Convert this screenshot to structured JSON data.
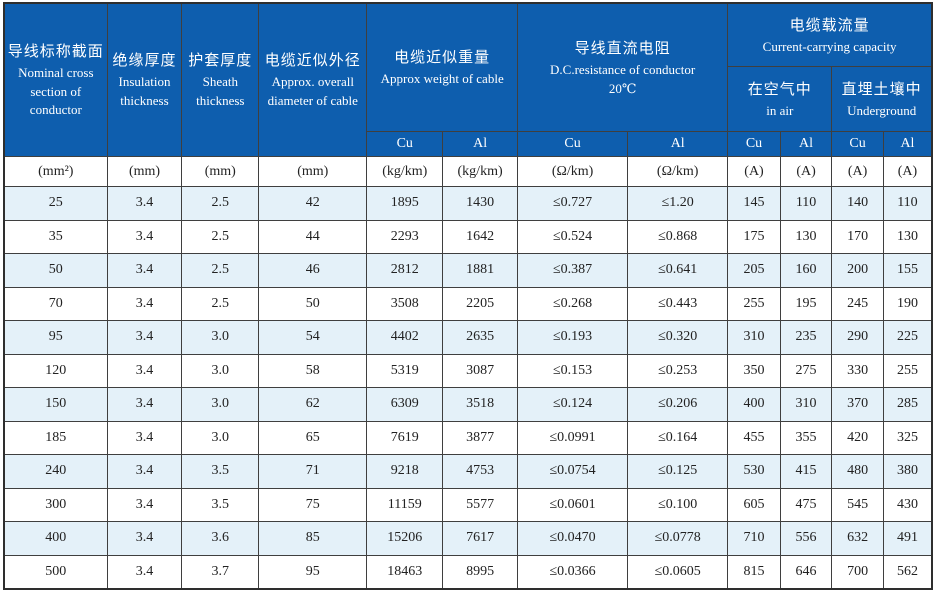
{
  "table_title": "cable-specification-table",
  "header": {
    "nominal": {
      "zh": "导线标称截面",
      "en": "Nominal  cross section of conductor"
    },
    "insulation": {
      "zh": "绝缘厚度",
      "en": "Insulation thickness"
    },
    "sheath": {
      "zh": "护套厚度",
      "en": "Sheath thickness"
    },
    "diameter": {
      "zh": "电缆近似外径",
      "en": "Approx. overall diameter of cable"
    },
    "weight": {
      "zh": "电缆近似重量",
      "en": "Approx weight of cable"
    },
    "resistance": {
      "zh": "导线直流电阻",
      "en": "D.C.resistance of conductor",
      "temp": "20℃"
    },
    "capacity": {
      "zh": "电缆载流量",
      "en": "Current-carrying capacity"
    },
    "in_air": {
      "zh": "在空气中",
      "en": "in air"
    },
    "underground": {
      "zh": "直埋土壤中",
      "en": "Underground"
    },
    "cu": "Cu",
    "al": "Al"
  },
  "units": [
    "(mm²)",
    "(mm)",
    "(mm)",
    "(mm)",
    "(kg/km)",
    "(kg/km)",
    "(Ω/km)",
    "(Ω/km)",
    "(A)",
    "(A)",
    "(A)",
    "(A)"
  ],
  "rows": [
    [
      "25",
      "3.4",
      "2.5",
      "42",
      "1895",
      "1430",
      "≤0.727",
      "≤1.20",
      "145",
      "110",
      "140",
      "110"
    ],
    [
      "35",
      "3.4",
      "2.5",
      "44",
      "2293",
      "1642",
      "≤0.524",
      "≤0.868",
      "175",
      "130",
      "170",
      "130"
    ],
    [
      "50",
      "3.4",
      "2.5",
      "46",
      "2812",
      "1881",
      "≤0.387",
      "≤0.641",
      "205",
      "160",
      "200",
      "155"
    ],
    [
      "70",
      "3.4",
      "2.5",
      "50",
      "3508",
      "2205",
      "≤0.268",
      "≤0.443",
      "255",
      "195",
      "245",
      "190"
    ],
    [
      "95",
      "3.4",
      "3.0",
      "54",
      "4402",
      "2635",
      "≤0.193",
      "≤0.320",
      "310",
      "235",
      "290",
      "225"
    ],
    [
      "120",
      "3.4",
      "3.0",
      "58",
      "5319",
      "3087",
      "≤0.153",
      "≤0.253",
      "350",
      "275",
      "330",
      "255"
    ],
    [
      "150",
      "3.4",
      "3.0",
      "62",
      "6309",
      "3518",
      "≤0.124",
      "≤0.206",
      "400",
      "310",
      "370",
      "285"
    ],
    [
      "185",
      "3.4",
      "3.0",
      "65",
      "7619",
      "3877",
      "≤0.0991",
      "≤0.164",
      "455",
      "355",
      "420",
      "325"
    ],
    [
      "240",
      "3.4",
      "3.5",
      "71",
      "9218",
      "4753",
      "≤0.0754",
      "≤0.125",
      "530",
      "415",
      "480",
      "380"
    ],
    [
      "300",
      "3.4",
      "3.5",
      "75",
      "11159",
      "5577",
      "≤0.0601",
      "≤0.100",
      "605",
      "475",
      "545",
      "430"
    ],
    [
      "400",
      "3.4",
      "3.6",
      "85",
      "15206",
      "7617",
      "≤0.0470",
      "≤0.0778",
      "710",
      "556",
      "632",
      "491"
    ],
    [
      "500",
      "3.4",
      "3.7",
      "95",
      "18463",
      "8995",
      "≤0.0366",
      "≤0.0605",
      "815",
      "646",
      "700",
      "562"
    ]
  ],
  "colors": {
    "header_blue": "#0e5eae",
    "stripe_blue": "#e4f1f9",
    "grid_line": "#3f3f3f"
  }
}
